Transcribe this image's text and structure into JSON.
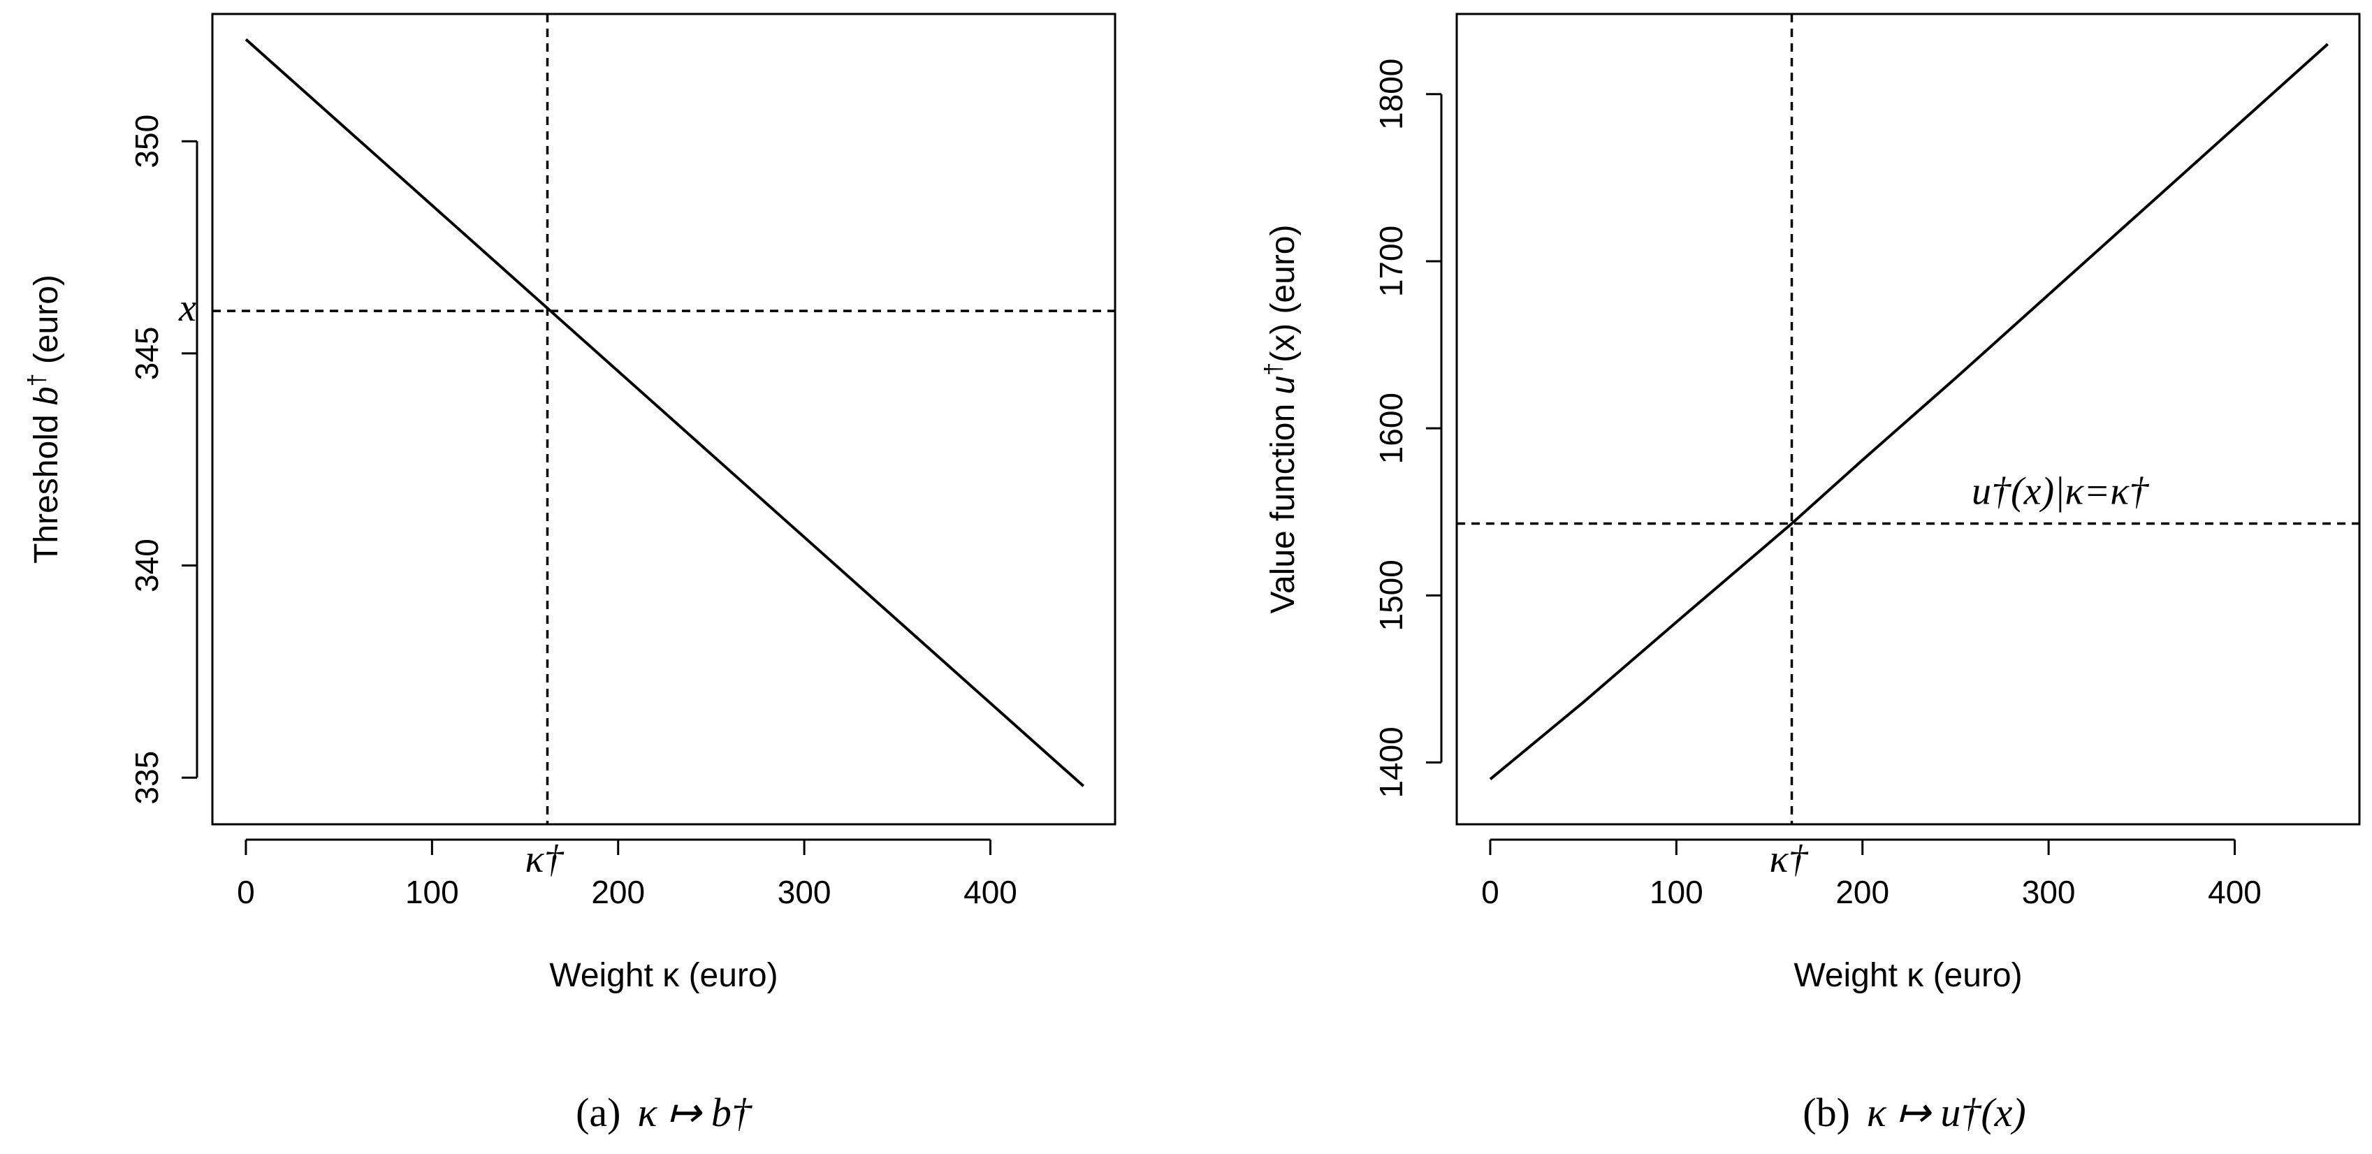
{
  "chart_data": [
    {
      "type": "line",
      "id": "a",
      "caption_tag": "(a)",
      "caption_math": "κ ↦ b†",
      "xlabel": "Weight κ (euro)",
      "ylabel_pre": "Threshold ",
      "ylabel_sym": "b",
      "ylabel_sup": "†",
      "ylabel_post": " (euro)",
      "xlim": [
        -18,
        467
      ],
      "ylim": [
        333.9,
        353.0
      ],
      "xticks": [
        0,
        100,
        200,
        300,
        400
      ],
      "yticks": [
        335,
        340,
        345,
        350
      ],
      "series": [
        {
          "x": [
            0,
            450
          ],
          "y": [
            352.4,
            334.8
          ]
        }
      ],
      "vline": {
        "x": 162,
        "label": "κ†"
      },
      "hline": {
        "y": 346.0,
        "label": "x"
      }
    },
    {
      "type": "line",
      "id": "b",
      "caption_tag": "(b)",
      "caption_math": "κ ↦ u†(x)",
      "xlabel": "Weight κ (euro)",
      "ylabel_pre": "Value function ",
      "ylabel_sym": "u",
      "ylabel_sup": "†",
      "ylabel_post": "(x) (euro)",
      "xlim": [
        -18,
        467
      ],
      "ylim": [
        1363,
        1848
      ],
      "xticks": [
        0,
        100,
        200,
        300,
        400
      ],
      "yticks": [
        1400,
        1500,
        1600,
        1700,
        1800
      ],
      "series": [
        {
          "x": [
            0,
            50,
            100,
            162,
            200,
            250,
            300,
            350,
            400,
            450
          ],
          "y": [
            1390,
            1436,
            1484,
            1543,
            1581,
            1630,
            1680,
            1730,
            1780,
            1830
          ]
        }
      ],
      "vline": {
        "x": 162,
        "label": "κ†"
      },
      "hline": {
        "y": 1543,
        "label": "u†(x)|κ=κ†"
      }
    }
  ]
}
